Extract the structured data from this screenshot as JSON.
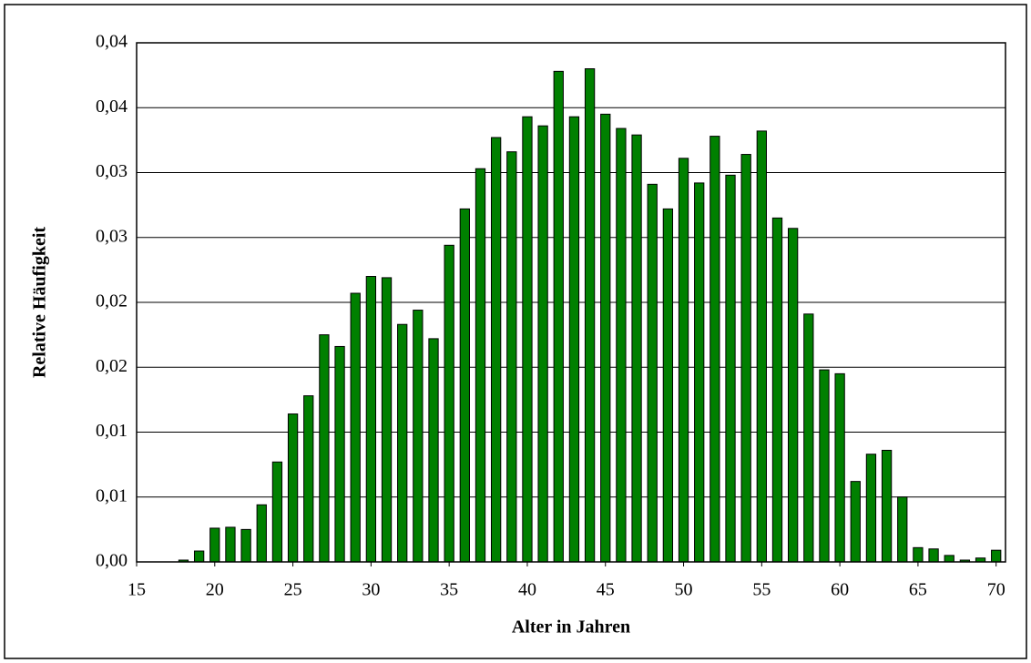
{
  "chart_data": {
    "type": "bar",
    "x_label": "Alter in Jahren",
    "y_label": "Relative Häufigkeit",
    "x": [
      18,
      19,
      20,
      21,
      22,
      23,
      24,
      25,
      26,
      27,
      28,
      29,
      30,
      31,
      32,
      33,
      34,
      35,
      36,
      37,
      38,
      39,
      40,
      41,
      42,
      43,
      44,
      45,
      46,
      47,
      48,
      49,
      50,
      51,
      52,
      53,
      54,
      55,
      56,
      57,
      58,
      59,
      60,
      61,
      62,
      63,
      64,
      65,
      66,
      67,
      68,
      69,
      70
    ],
    "values": [
      0.00014,
      0.00084,
      0.0026,
      0.00267,
      0.0025,
      0.0044,
      0.0077,
      0.0114,
      0.0128,
      0.0175,
      0.0166,
      0.0207,
      0.022,
      0.0219,
      0.0183,
      0.0194,
      0.0172,
      0.0244,
      0.0272,
      0.0303,
      0.0327,
      0.0316,
      0.0343,
      0.0336,
      0.0378,
      0.0343,
      0.038,
      0.0345,
      0.0334,
      0.0329,
      0.0291,
      0.0272,
      0.0311,
      0.0292,
      0.0328,
      0.0298,
      0.0314,
      0.0332,
      0.0265,
      0.0257,
      0.0191,
      0.0148,
      0.0145,
      0.0062,
      0.0083,
      0.0086,
      0.005,
      0.0011,
      0.001,
      0.0005,
      0.00014,
      0.0003,
      0.0009
    ],
    "color": "#008000",
    "xlim": [
      15,
      70.6
    ],
    "xticks": [
      15,
      20,
      25,
      30,
      35,
      40,
      45,
      50,
      55,
      60,
      65,
      70
    ],
    "ylim": [
      0,
      0.04
    ],
    "yticks": [
      {
        "value": 0,
        "label": "0,00"
      },
      {
        "value": 0.005,
        "label": "0,01"
      },
      {
        "value": 0.01,
        "label": "0,01"
      },
      {
        "value": 0.015,
        "label": "0,02"
      },
      {
        "value": 0.02,
        "label": "0,02"
      },
      {
        "value": 0.025,
        "label": "0,03"
      },
      {
        "value": 0.03,
        "label": "0,03"
      },
      {
        "value": 0.035,
        "label": "0,04"
      },
      {
        "value": 0.04,
        "label": "0,04"
      }
    ],
    "grid": true
  }
}
